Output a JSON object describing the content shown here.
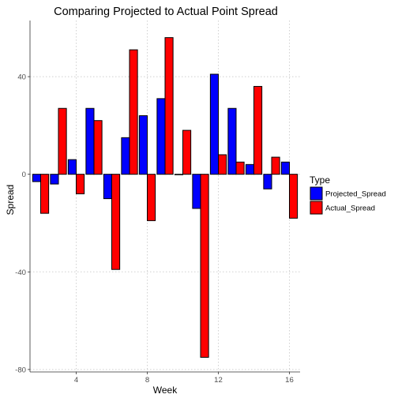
{
  "chart_data": {
    "type": "bar",
    "title": "Comparing Projected to Actual Point Spread",
    "xlabel": "Week",
    "ylabel": "Spread",
    "x": [
      2,
      3,
      4,
      5,
      6,
      7,
      8,
      9,
      10,
      11,
      12,
      13,
      14,
      15,
      16
    ],
    "series": [
      {
        "name": "Projected_Spread",
        "color": "#0000ff",
        "values": [
          -3,
          -4,
          6,
          27,
          -10,
          15,
          24,
          31,
          0,
          -14,
          41,
          27,
          4,
          -6,
          5
        ]
      },
      {
        "name": "Actual_Spread",
        "color": "#ff0000",
        "values": [
          -16,
          27,
          -8,
          22,
          -39,
          51,
          -19,
          56,
          18,
          -75,
          8,
          5,
          36,
          7,
          -18
        ]
      }
    ],
    "xticks": [
      4,
      8,
      12,
      16
    ],
    "yticks": [
      -80,
      -40,
      0,
      40
    ],
    "xlim": [
      1.4,
      16.6
    ],
    "ylim": [
      -81,
      63
    ],
    "grid": true,
    "legend": {
      "title": "Type",
      "position": "right"
    }
  }
}
